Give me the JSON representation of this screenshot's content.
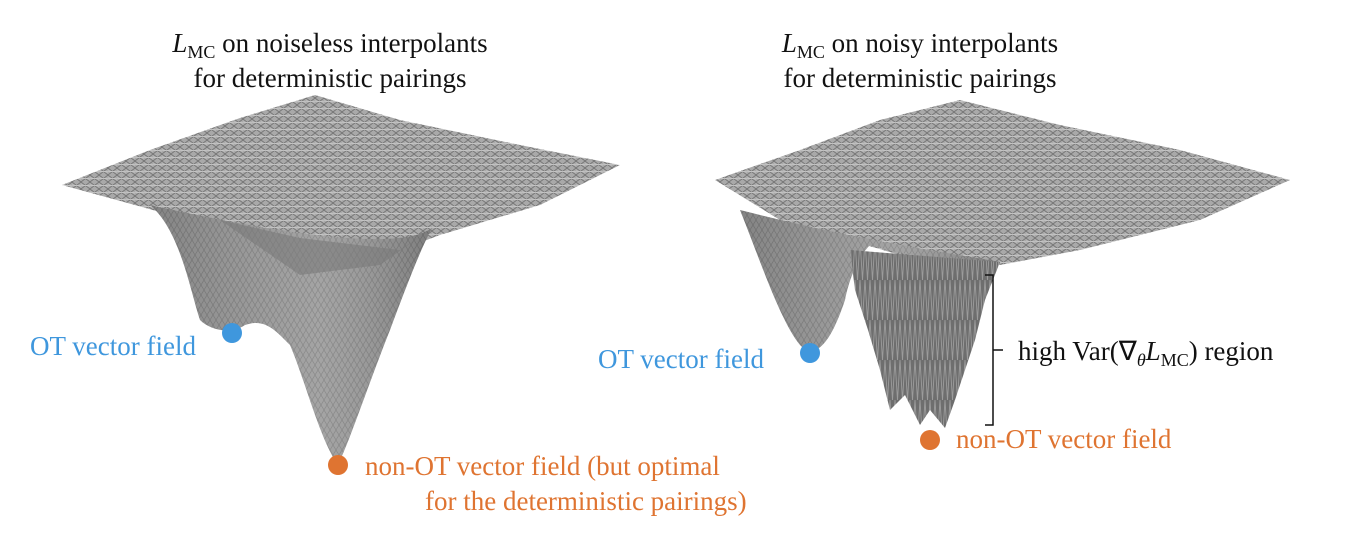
{
  "left_panel": {
    "title": {
      "symbol": "L",
      "subscript": "MC",
      "line1_rest": " on noiseless interpolants",
      "line2": "for deterministic pairings"
    },
    "ot_label": "OT vector field",
    "non_ot_label": {
      "line1": "non-OT vector field (but optimal",
      "line2": "for the deterministic pairings)"
    }
  },
  "right_panel": {
    "title": {
      "symbol": "L",
      "subscript": "MC",
      "line1_rest": " on noisy interpolants",
      "line2": "for deterministic pairings"
    },
    "ot_label": "OT vector field",
    "non_ot_label": "non-OT vector field",
    "region_label": {
      "prefix": "high Var(∇",
      "grad_subscript": "θ",
      "symbol": "L",
      "subscript": "MC",
      "suffix": ") region"
    }
  }
}
